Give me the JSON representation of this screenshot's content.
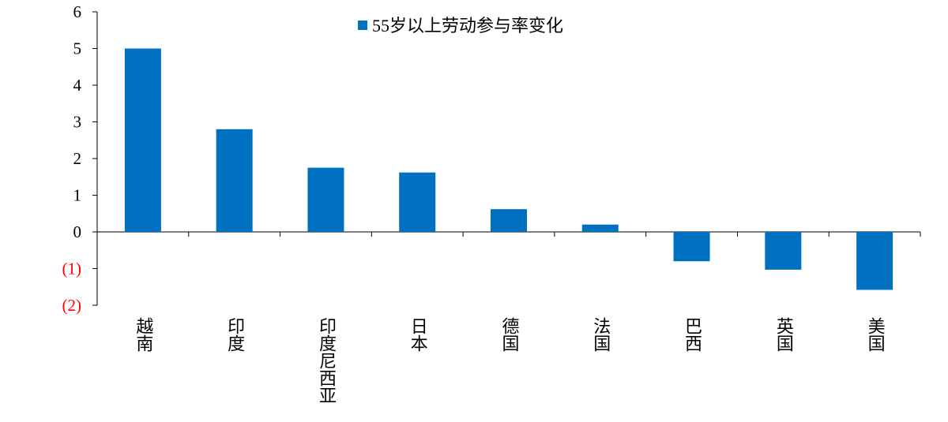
{
  "chart_data": {
    "type": "bar",
    "categories": [
      "越南",
      "印度",
      "印度尼西亚",
      "日本",
      "德国",
      "法国",
      "巴西",
      "英国",
      "美国"
    ],
    "series": [
      {
        "name": "55岁以上劳动参与率变化",
        "values": [
          5.0,
          2.8,
          1.75,
          1.62,
          0.62,
          0.2,
          -0.8,
          -1.03,
          -1.58
        ]
      }
    ],
    "y_ticks": [
      {
        "value": 6,
        "label": "6"
      },
      {
        "value": 5,
        "label": "5"
      },
      {
        "value": 4,
        "label": "4"
      },
      {
        "value": 3,
        "label": "3"
      },
      {
        "value": 2,
        "label": "2"
      },
      {
        "value": 1,
        "label": "1"
      },
      {
        "value": 0,
        "label": "0"
      },
      {
        "value": -1,
        "label": "(1)"
      },
      {
        "value": -2,
        "label": "(2)"
      }
    ],
    "ylim": [
      -2,
      6
    ],
    "grid": false,
    "legend_position": "top-center",
    "colors": {
      "bar": "#0070C0",
      "negative_tick_label": "#FF0000",
      "tick_label": "#000000",
      "axis": "#000000"
    }
  }
}
